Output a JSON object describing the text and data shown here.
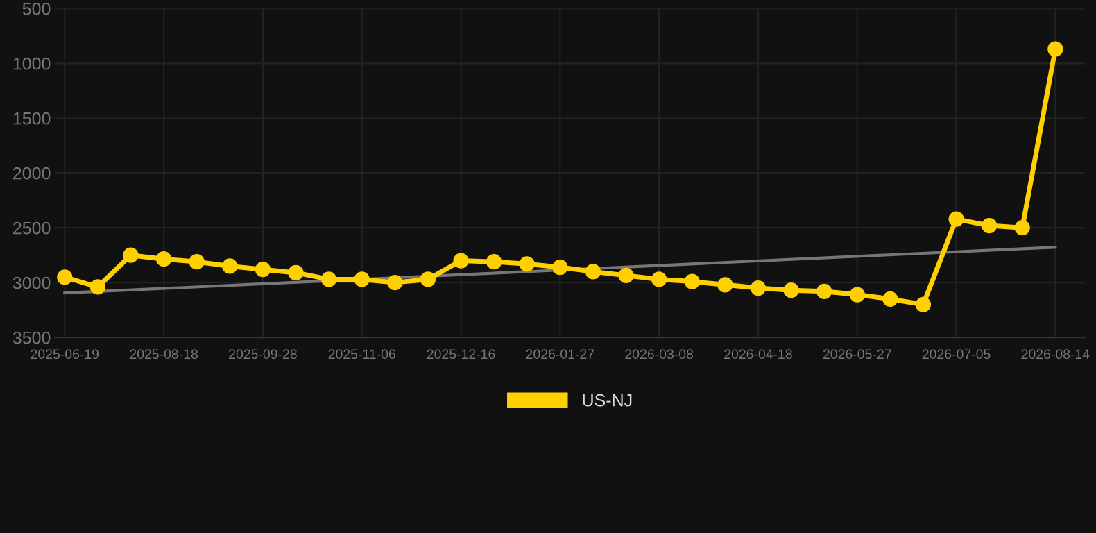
{
  "chart_data": {
    "type": "line",
    "categories": [
      "2025-06-19",
      null,
      null,
      "2025-08-18",
      null,
      null,
      "2025-09-28",
      null,
      null,
      "2025-11-06",
      null,
      null,
      "2025-12-16",
      null,
      null,
      "2026-01-27",
      null,
      null,
      "2026-03-08",
      null,
      null,
      "2026-04-18",
      null,
      null,
      "2026-05-27",
      null,
      null,
      "2026-07-05",
      null,
      null,
      "2026-08-14"
    ],
    "series": [
      {
        "name": "US-NJ",
        "color": "#ffd000",
        "marker": "circle",
        "values": [
          2950,
          3040,
          2750,
          2785,
          2810,
          2850,
          2880,
          2910,
          2970,
          2970,
          3000,
          2970,
          2800,
          2810,
          2830,
          2860,
          2900,
          2935,
          2970,
          2990,
          3020,
          3050,
          3070,
          3080,
          3110,
          3150,
          3200,
          2420,
          2480,
          2500,
          870
        ]
      },
      {
        "type": "line",
        "color": "#777777",
        "marker": "none",
        "values": [
          3095,
          null,
          null,
          null,
          null,
          null,
          null,
          null,
          null,
          null,
          null,
          null,
          null,
          null,
          null,
          null,
          null,
          null,
          null,
          null,
          null,
          null,
          null,
          null,
          null,
          null,
          null,
          null,
          null,
          null,
          2677
        ]
      }
    ],
    "ylim": [
      3500,
      500
    ],
    "yticks": [
      500,
      1000,
      1500,
      2000,
      2500,
      3000,
      3500
    ],
    "grid": true,
    "legend": "bottom"
  }
}
